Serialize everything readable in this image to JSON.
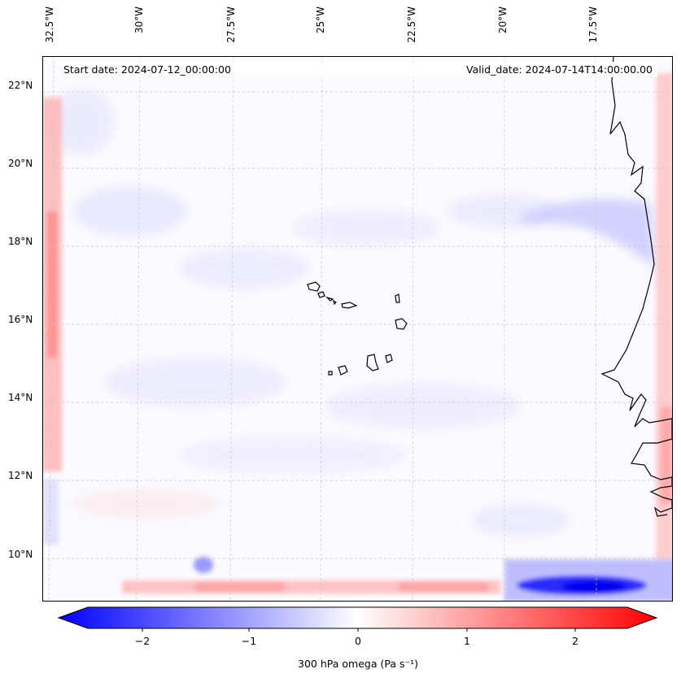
{
  "header": {
    "start_date": "Start date: 2024-07-12_00:00:00",
    "valid_date": "Valid_date: 2024-07-14T14:00:00.00"
  },
  "axes": {
    "longitude_labels": [
      "32.5°W",
      "30°W",
      "27.5°W",
      "25°W",
      "22.5°W",
      "20°W",
      "17.5°W"
    ],
    "latitude_labels": [
      "22°N",
      "20°N",
      "18°N",
      "16°N",
      "14°N",
      "12°N",
      "10°N"
    ]
  },
  "colorbar": {
    "label": "300 hPa omega (Pa s⁻¹)",
    "ticks": [
      "−2",
      "−1",
      "0",
      "1",
      "2"
    ],
    "range": [
      -2.6,
      2.6
    ],
    "colormap": "bwr",
    "extend": "both"
  },
  "chart_data": {
    "type": "heatmap",
    "variable": "300 hPa omega",
    "units": "Pa s⁻¹",
    "region": {
      "lon_range": [
        -33.2,
        -15.3
      ],
      "lat_range": [
        8.9,
        22.8
      ]
    },
    "gridlines": true,
    "features": [
      {
        "name": "strong ascent band",
        "value": -2.3,
        "lon": [
          -19.5,
          -16.5
        ],
        "lat": [
          9.0,
          9.8
        ]
      },
      {
        "name": "descent strip south boundary",
        "value": 0.7,
        "lon": [
          -32.0,
          -21.0
        ],
        "lat": [
          9.0,
          9.4
        ]
      },
      {
        "name": "west boundary descent",
        "value": 1.2,
        "lon": [
          -33.0,
          -32.6
        ],
        "lat": [
          12.0,
          22.5
        ]
      },
      {
        "name": "east boundary descent",
        "value": 0.8,
        "lon": [
          -15.6,
          -15.3
        ],
        "lat": [
          9.5,
          22.5
        ]
      },
      {
        "name": "coastal ascent band",
        "value": -0.6,
        "lon": [
          -18.0,
          -15.5
        ],
        "lat": [
          17.0,
          18.5
        ]
      }
    ]
  }
}
